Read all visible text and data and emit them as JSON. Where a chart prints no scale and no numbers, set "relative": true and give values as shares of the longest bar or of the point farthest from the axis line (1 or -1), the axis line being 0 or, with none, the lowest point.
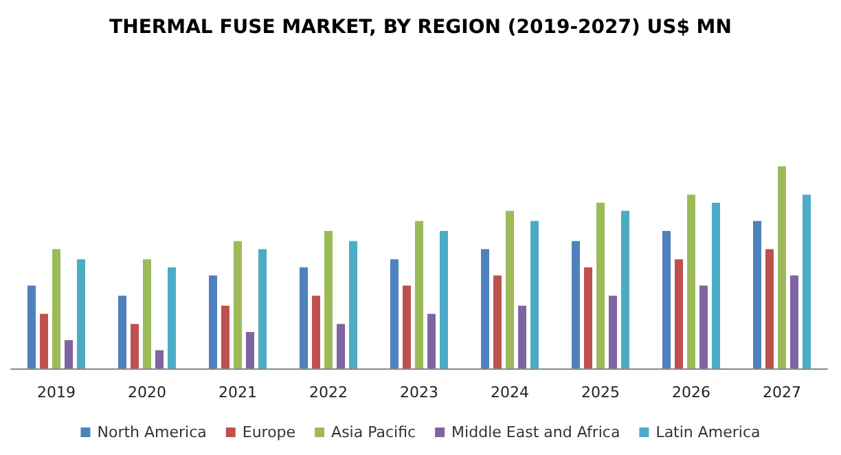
{
  "chart_data": {
    "type": "bar",
    "title": "THERMAL FUSE MARKET, BY REGION (2019-2027) US$ MN",
    "relative": true,
    "legend": "bottom",
    "categories": [
      "2019",
      "2020",
      "2021",
      "2022",
      "2023",
      "2024",
      "2025",
      "2026",
      "2027"
    ],
    "series": [
      {
        "name": "North America",
        "color": "#4f81bd",
        "values": [
          0.41,
          0.36,
          0.46,
          0.5,
          0.54,
          0.59,
          0.63,
          0.68,
          0.73
        ]
      },
      {
        "name": "Europe",
        "color": "#c0504d",
        "values": [
          0.27,
          0.22,
          0.31,
          0.36,
          0.41,
          0.46,
          0.5,
          0.54,
          0.59
        ]
      },
      {
        "name": "Asia Pacific",
        "color": "#9bbb59",
        "values": [
          0.59,
          0.54,
          0.63,
          0.68,
          0.73,
          0.78,
          0.82,
          0.86,
          1
        ]
      },
      {
        "name": "Middle East and Africa",
        "color": "#8064a2",
        "values": [
          0.14,
          0.09,
          0.18,
          0.22,
          0.27,
          0.31,
          0.36,
          0.41,
          0.46
        ]
      },
      {
        "name": "Latin America",
        "color": "#4bacc6",
        "values": [
          0.54,
          0.5,
          0.59,
          0.63,
          0.68,
          0.73,
          0.78,
          0.82,
          0.86
        ]
      }
    ]
  }
}
